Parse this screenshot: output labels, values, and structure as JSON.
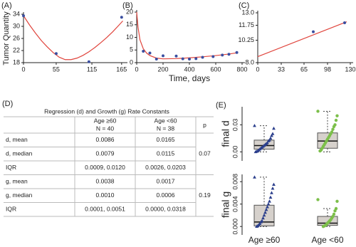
{
  "chart_data": [
    {
      "type": "scatter",
      "panel": "(A)",
      "ylabel": "Tumor Quantity",
      "points": {
        "color": "#3a4ea0",
        "x": [
          0,
          55,
          110,
          165
        ],
        "values": [
          33.5,
          21,
          18.3,
          33
        ]
      },
      "curve": {
        "color": "#e0443c",
        "x": [
          0,
          10,
          20,
          30,
          40,
          50,
          60,
          70,
          80,
          90,
          100,
          110,
          120,
          130,
          140,
          150,
          160,
          167
        ],
        "values": [
          33.5,
          30.5,
          27.8,
          25.3,
          23.2,
          21.3,
          19.8,
          19.0,
          19.0,
          19.5,
          20.4,
          21.6,
          23.0,
          24.6,
          26.3,
          28.2,
          30.3,
          31.8
        ]
      },
      "xlim": [
        0,
        170
      ],
      "ylim": [
        18,
        34
      ],
      "xticks": [
        0,
        55,
        115,
        165
      ],
      "yticks": [
        18,
        22,
        26,
        30,
        34
      ]
    },
    {
      "type": "scatter",
      "panel": "(B)",
      "xlabel": "Time, days",
      "points": {
        "color": "#3a4ea0",
        "x": [
          50,
          100,
          150,
          200,
          300,
          350,
          400,
          450,
          500,
          580,
          650,
          700,
          760
        ],
        "values": [
          4.5,
          3.8,
          1.4,
          2.7,
          2.6,
          1.5,
          1.4,
          1.6,
          2.1,
          2.4,
          3.0,
          3.3,
          4.0
        ]
      },
      "curve": {
        "color": "#e0443c",
        "x": [
          0,
          10,
          25,
          50,
          75,
          100,
          150,
          200,
          300,
          400,
          500,
          600,
          700,
          760
        ],
        "values": [
          20,
          14,
          9,
          5.5,
          3.8,
          2.8,
          1.8,
          1.5,
          1.6,
          1.9,
          2.3,
          2.8,
          3.4,
          3.9
        ]
      },
      "xlim": [
        0,
        800
      ],
      "ylim": [
        0,
        20
      ],
      "xticks": [
        0,
        200,
        400,
        600,
        800
      ],
      "yticks": [
        0,
        5,
        10,
        15,
        20
      ]
    },
    {
      "type": "scatter",
      "panel": "(C)",
      "points": {
        "color": "#3a4ea0",
        "x": [
          78,
          122
        ],
        "values": [
          11.1,
          12.0
        ]
      },
      "curve": {
        "color": "#e0443c",
        "x": [
          0,
          125
        ],
        "values": [
          8.6,
          12.1
        ]
      },
      "xlim": [
        0,
        130
      ],
      "ylim": [
        8,
        13
      ],
      "xticks": [
        0,
        33,
        65,
        98,
        130
      ],
      "yticks": [
        {
          "value": 8,
          "label": "8.0"
        },
        10.25,
        11.75,
        {
          "value": 13,
          "label": "13.0"
        }
      ]
    },
    {
      "type": "box",
      "panel": "(E)",
      "categories": [
        "Age ≥60",
        "Age <60"
      ],
      "plots": [
        {
          "ylabel": "final d",
          "ylim": [
            -0.01,
            0.05
          ],
          "yticks": [
            {
              "value": 0,
              "label": "0.00"
            },
            0.03
          ],
          "boxes": [
            {
              "color": "#2b3f8c",
              "marker": "triangle",
              "whisker_low": 0,
              "q1": 0.003,
              "median": 0.007,
              "q3": 0.013,
              "whisker_high": 0.029,
              "points": [
                0.029,
                0.026,
                0.02,
                0.018,
                0.015,
                0.013,
                0.012,
                0.01,
                0.009,
                0.008,
                0.007,
                0.006,
                0.005,
                0.004,
                0.003,
                0.002,
                0.001,
                0.0005,
                0
              ]
            },
            {
              "color": "#7cbf4a",
              "marker": "circle",
              "whisker_low": 0,
              "q1": 0.004,
              "median": 0.012,
              "q3": 0.021,
              "whisker_high": 0.045,
              "points": [
                0.045,
                0.04,
                0.035,
                0.03,
                0.028,
                0.025,
                0.022,
                0.02,
                0.018,
                0.016,
                0.014,
                0.012,
                0.01,
                0.008,
                0.006,
                0.004,
                0.002,
                0.001
              ]
            }
          ]
        },
        {
          "ylabel": "final g",
          "ylim": [
            -0.0015,
            0.0093
          ],
          "yticks": [
            {
              "value": 0,
              "label": "0.000"
            },
            0.004,
            0.008
          ],
          "boxes": [
            {
              "color": "#2b3f8c",
              "marker": "triangle",
              "whisker_low": 0,
              "q1": 0.0001,
              "median": 0.0008,
              "q3": 0.0038,
              "whisker_high": 0.0088,
              "points": [
                0.0088,
                0.0075,
                0.0068,
                0.006,
                0.0052,
                0.0045,
                0.004,
                0.0035,
                0.003,
                0.0025,
                0.002,
                0.0015,
                0.001,
                0.0008,
                0.0005,
                0.0003,
                0.0001,
                0
              ]
            },
            {
              "color": "#7cbf4a",
              "marker": "circle",
              "whisker_low": 0,
              "q1": 0.0002,
              "median": 0.0006,
              "q3": 0.0018,
              "whisker_high": 0.0032,
              "points": [
                0.0048,
                0.0045,
                0.0032,
                0.0028,
                0.0022,
                0.0018,
                0.0015,
                0.0012,
                0.001,
                0.0008,
                0.0006,
                0.0004,
                0.0002,
                0.0001,
                0
              ]
            }
          ]
        }
      ]
    }
  ],
  "table": {
    "panel": "(D)",
    "caption": "Regression (d) and Growth (g) Rate Constants",
    "header": [
      [
        "Age ≥60",
        "N = 40"
      ],
      [
        "Age <60",
        "N = 38"
      ],
      "p"
    ],
    "rows": [
      [
        "d, mean",
        "0.0086",
        "0.0165"
      ],
      [
        "d, median",
        "0.0079",
        "0.0115"
      ],
      [
        "IQR",
        "0.0009, 0.0120",
        "0.0026, 0.0203"
      ],
      [
        "g, mean",
        "0.0038",
        "0.0017"
      ],
      [
        "g, median",
        "0.0010",
        "0.0006"
      ],
      [
        "IQR",
        "0.0001, 0.0051",
        "0.0000, 0.0318"
      ]
    ],
    "p_values": [
      "0.07",
      "0.19"
    ]
  }
}
